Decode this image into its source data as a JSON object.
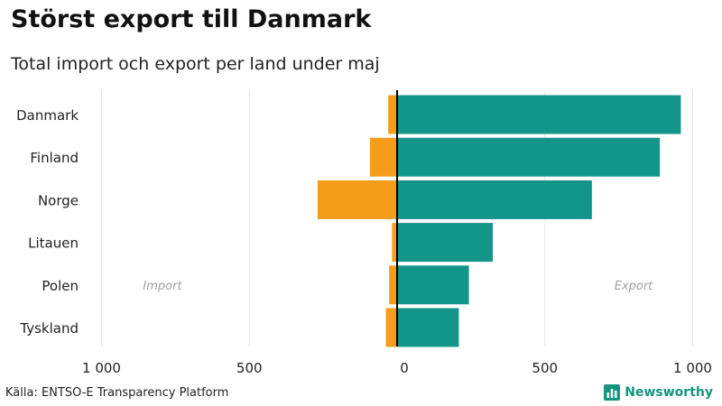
{
  "header": {
    "title": "Störst export till Danmark",
    "subtitle": "Total import och export per land under maj"
  },
  "footer": {
    "source": "Källa: ENTSO-E Transparency Platform",
    "brand": "Newsworthy",
    "brand_icon": "bar-chart-logo-icon"
  },
  "colors": {
    "import": "#f59c1a",
    "export": "#14958a",
    "brand": "#15957f",
    "grid": "#e8e8e8",
    "zero_line": "#000000",
    "annotation": "#a0a0a8"
  },
  "chart_data": {
    "type": "bar",
    "orientation": "horizontal",
    "categories": [
      "Danmark",
      "Finland",
      "Norge",
      "Litauen",
      "Polen",
      "Tyskland"
    ],
    "series": [
      {
        "name": "Import",
        "values": [
          -30,
          -92,
          -269,
          -17,
          -27,
          -38
        ]
      },
      {
        "name": "Export",
        "values": [
          960,
          889,
          659,
          324,
          243,
          209
        ]
      }
    ],
    "xlim": [
      -1000,
      1000
    ],
    "xticks": [
      -1000,
      -500,
      0,
      500,
      1000
    ],
    "xtick_labels": [
      "1 000",
      "500",
      "0",
      "500",
      "1 000"
    ],
    "annotations": [
      {
        "text": "Import",
        "side": "left"
      },
      {
        "text": "Export",
        "side": "right"
      }
    ],
    "grid": true,
    "legend": "none"
  }
}
